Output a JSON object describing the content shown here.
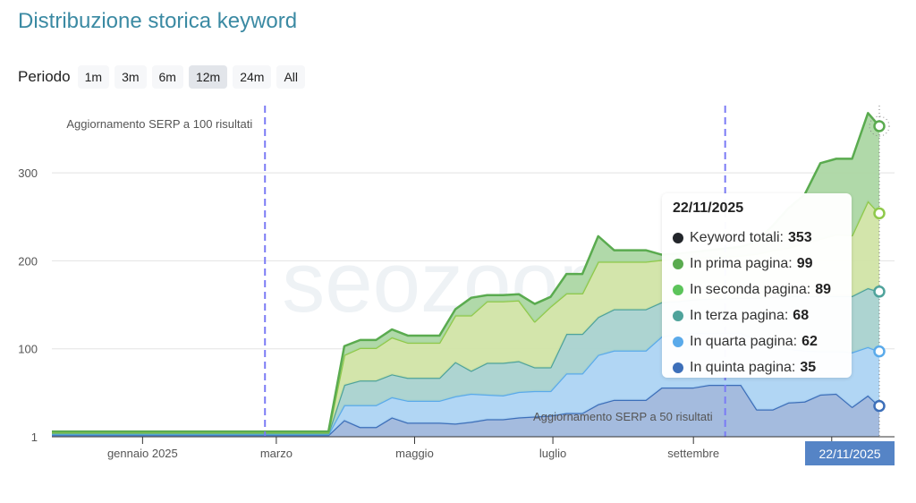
{
  "header": {
    "title": "Distribuzione storica keyword"
  },
  "period": {
    "label": "Periodo",
    "options": [
      "1m",
      "3m",
      "6m",
      "12m",
      "24m",
      "All"
    ],
    "selected": "12m"
  },
  "watermark": "seozoom",
  "chart_data": {
    "type": "area",
    "stacked": true,
    "title": "",
    "xlabel": "",
    "ylabel": "",
    "ylim": [
      0,
      375
    ],
    "y_ticks": [
      1,
      100,
      200,
      300
    ],
    "grid": true,
    "x_ticks": [
      {
        "date": "2025-01-01",
        "label": "gennaio 2025"
      },
      {
        "date": "2025-03-01",
        "label": "marzo"
      },
      {
        "date": "2025-05-01",
        "label": "maggio"
      },
      {
        "date": "2025-07-01",
        "label": "luglio"
      },
      {
        "date": "2025-09-01",
        "label": "settembre"
      },
      {
        "date": "2025-11-01",
        "label": ""
      }
    ],
    "x": [
      "2024-11-22",
      "2025-03-24",
      "2025-03-31",
      "2025-04-07",
      "2025-04-14",
      "2025-04-21",
      "2025-04-28",
      "2025-05-05",
      "2025-05-12",
      "2025-05-19",
      "2025-05-26",
      "2025-06-02",
      "2025-06-09",
      "2025-06-16",
      "2025-06-23",
      "2025-06-30",
      "2025-07-07",
      "2025-07-14",
      "2025-07-21",
      "2025-07-28",
      "2025-08-04",
      "2025-08-11",
      "2025-08-18",
      "2025-08-25",
      "2025-09-01",
      "2025-09-08",
      "2025-09-15",
      "2025-09-22",
      "2025-09-29",
      "2025-10-06",
      "2025-10-13",
      "2025-10-20",
      "2025-10-27",
      "2025-11-03",
      "2025-11-10",
      "2025-11-17",
      "2025-11-22"
    ],
    "series": [
      {
        "name": "In quinta pagina",
        "color": "#3d6fb9",
        "fill": "#9fb7dc",
        "values": [
          2,
          2,
          19,
          11,
          11,
          22,
          16,
          16,
          16,
          15,
          17,
          20,
          20,
          22,
          23,
          24,
          27,
          27,
          37,
          42,
          42,
          42,
          56,
          56,
          56,
          59,
          59,
          59,
          31,
          31,
          39,
          40,
          48,
          49,
          34,
          47,
          35
        ]
      },
      {
        "name": "In quarta pagina",
        "color": "#5aaaea",
        "fill": "#add4f3",
        "values": [
          1,
          1,
          17,
          25,
          25,
          23,
          25,
          25,
          25,
          31,
          32,
          28,
          27,
          29,
          29,
          28,
          45,
          45,
          56,
          56,
          56,
          56,
          58,
          60,
          62,
          59,
          59,
          59,
          79,
          74,
          61,
          58,
          49,
          48,
          62,
          55,
          62
        ]
      },
      {
        "name": "In terza pagina",
        "color": "#4fa39b",
        "fill": "#a9d2cf",
        "values": [
          1,
          1,
          23,
          28,
          28,
          26,
          26,
          26,
          26,
          39,
          26,
          36,
          37,
          35,
          27,
          27,
          45,
          45,
          43,
          47,
          47,
          47,
          39,
          38,
          38,
          39,
          39,
          40,
          48,
          54,
          60,
          62,
          63,
          63,
          64,
          67,
          68
        ]
      },
      {
        "name": "In seconda pagina",
        "color": "#8fc94a",
        "fill": "#d1e4a7",
        "values": [
          1,
          1,
          34,
          37,
          37,
          42,
          40,
          40,
          40,
          53,
          63,
          70,
          70,
          69,
          52,
          69,
          46,
          46,
          63,
          54,
          54,
          54,
          48,
          48,
          47,
          47,
          48,
          48,
          50,
          53,
          55,
          60,
          65,
          70,
          69,
          99,
          89
        ]
      },
      {
        "name": "In prima pagina",
        "color": "#5aab4f",
        "fill": "#acd7a4",
        "values": [
          1,
          1,
          10,
          9,
          9,
          9,
          8,
          8,
          8,
          7,
          20,
          7,
          7,
          7,
          20,
          11,
          22,
          22,
          29,
          13,
          13,
          13,
          6,
          6,
          7,
          8,
          9,
          10,
          14,
          28,
          45,
          55,
          86,
          86,
          87,
          100,
          99
        ]
      }
    ],
    "plot_lines": [
      {
        "date": "2025-02-24",
        "label": "Aggiornamento SERP a 100 risultati",
        "color": "#7b7bf5"
      },
      {
        "date": "2025-09-15",
        "label": "Aggiornamento SERP a 50 risultati",
        "color": "#7b7bf5"
      }
    ],
    "tooltip": {
      "date": "22/11/2025",
      "rows": [
        {
          "label": "Keyword totali:",
          "value": "353",
          "color": "#23262b"
        },
        {
          "label": "In prima pagina:",
          "value": "99",
          "color": "#5aab4f"
        },
        {
          "label": "In seconda pagina:",
          "value": "89",
          "color": "#5cc45a"
        },
        {
          "label": "In terza pagina:",
          "value": "68",
          "color": "#4fa39b"
        },
        {
          "label": "In quarta pagina:",
          "value": "62",
          "color": "#5aaaea"
        },
        {
          "label": "In quinta pagina:",
          "value": "35",
          "color": "#3d6fb9"
        }
      ]
    },
    "x_highlight_label": "22/11/2025"
  }
}
